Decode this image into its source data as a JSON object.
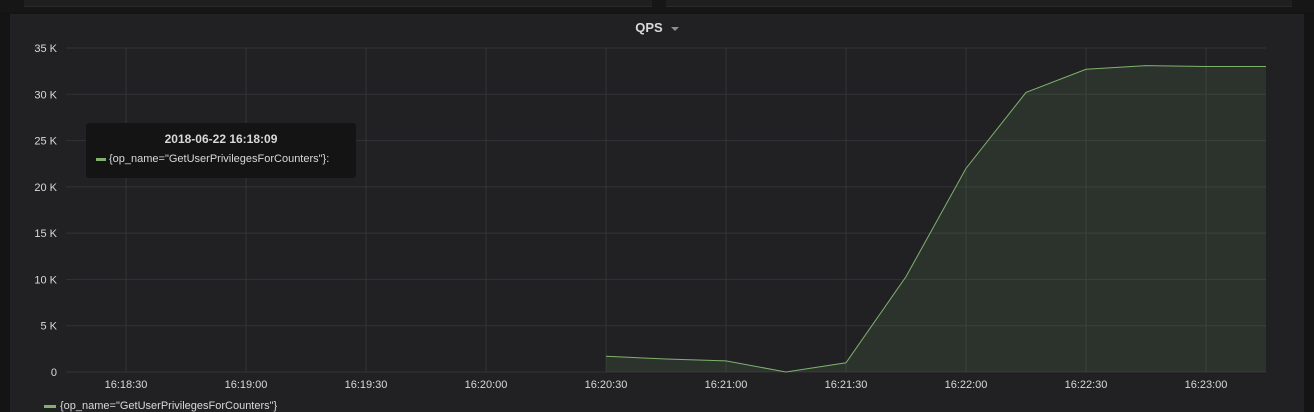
{
  "panel": {
    "title": "QPS"
  },
  "tooltip": {
    "time": "2018-06-22 16:18:09",
    "series_label": "{op_name=\"GetUserPrivilegesForCounters\"}:"
  },
  "legend": {
    "items": [
      {
        "label": "{op_name=\"GetUserPrivilegesForCounters\"}",
        "color": "#7eb26d"
      }
    ]
  },
  "colors": {
    "background": "#141414",
    "panel": "#212124",
    "grid": "#333336",
    "series": "#7eb26d",
    "text": "#d8d9da"
  },
  "chart_data": {
    "type": "area",
    "x_tick_labels": [
      "16:18:30",
      "16:19:00",
      "16:19:30",
      "16:20:00",
      "16:20:30",
      "16:21:00",
      "16:21:30",
      "16:22:00",
      "16:22:30",
      "16:23:00"
    ],
    "y_tick_labels": [
      "0",
      "5 K",
      "10 K",
      "15 K",
      "20 K",
      "25 K",
      "30 K",
      "35 K"
    ],
    "y_ticks": [
      0,
      5000,
      10000,
      15000,
      20000,
      25000,
      30000,
      35000
    ],
    "xlim": [
      "16:18:15",
      "16:23:15"
    ],
    "ylim": [
      0,
      35000
    ],
    "grid": true,
    "legend_position": "bottom-left",
    "series": [
      {
        "name": "{op_name=\"GetUserPrivilegesForCounters\"}",
        "x": [
          "16:20:30",
          "16:20:45",
          "16:21:00",
          "16:21:15",
          "16:21:30",
          "16:21:45",
          "16:22:00",
          "16:22:15",
          "16:22:30",
          "16:22:45",
          "16:23:00",
          "16:23:15"
        ],
        "y": [
          1700,
          1400,
          1200,
          0,
          1000,
          10300,
          22000,
          30200,
          32700,
          33100,
          33000,
          33000
        ]
      }
    ]
  }
}
